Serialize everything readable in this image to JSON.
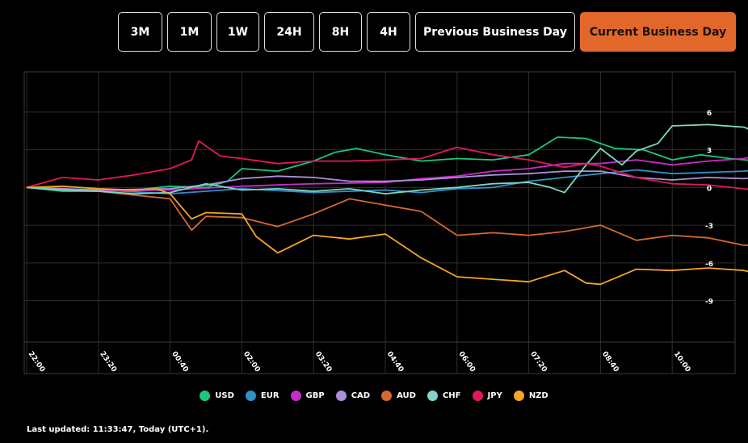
{
  "timeframes": [
    {
      "label": "3M",
      "active": false
    },
    {
      "label": "1M",
      "active": false
    },
    {
      "label": "1W",
      "active": false
    },
    {
      "label": "24H",
      "active": false
    },
    {
      "label": "8H",
      "active": false
    },
    {
      "label": "4H",
      "active": false
    },
    {
      "label": "Previous Business Day",
      "active": false
    },
    {
      "label": "Current Business Day",
      "active": true
    }
  ],
  "footer": {
    "text": "Last updated: 11:33:47, Today (UTC+1)."
  },
  "colors": {
    "accent": "#e2672b",
    "grid": "#2e2e2e"
  },
  "chart_data": {
    "type": "line",
    "x_tick_labels": [
      "22:00",
      "23:20",
      "00:40",
      "02:00",
      "03:20",
      "04:40",
      "06:00",
      "07:20",
      "08:40",
      "10:00"
    ],
    "y_ticks": [
      6,
      3,
      0,
      -3,
      -6,
      -9
    ],
    "ylim": [
      -12.3,
      9.2
    ],
    "xlim": [
      0,
      11.5
    ],
    "grid": true,
    "legend_position": "bottom",
    "series": [
      {
        "name": "USD",
        "color": "#18c97a",
        "x": [
          0,
          0.5,
          1,
          1.5,
          2,
          2.5,
          2.8,
          3,
          3.5,
          4,
          4.3,
          4.6,
          5,
          5.5,
          6,
          6.5,
          7,
          7.4,
          7.8,
          8.2,
          8.6,
          9,
          9.4,
          9.8,
          10.2,
          10.6,
          10.9
        ],
        "y": [
          0,
          -0.3,
          -0.3,
          -0.2,
          0.1,
          0,
          0.5,
          1.5,
          1.3,
          2.1,
          2.8,
          3.1,
          2.6,
          2.1,
          2.3,
          2.2,
          2.6,
          4,
          3.9,
          3.1,
          3,
          2.2,
          2.6,
          2.3,
          2.1,
          2.8,
          2.5
        ]
      },
      {
        "name": "EUR",
        "color": "#2e93c7",
        "x": [
          0,
          1,
          2,
          2.5,
          3,
          4,
          4.5,
          5,
          5.5,
          6,
          6.5,
          7,
          7.5,
          8,
          8.5,
          9,
          9.5,
          10,
          10.5,
          10.9
        ],
        "y": [
          0,
          -0.2,
          -0.5,
          -0.3,
          -0.1,
          -0.4,
          -0.3,
          -0.2,
          -0.4,
          -0.1,
          0,
          0.5,
          0.8,
          1.1,
          1.4,
          1.1,
          1.2,
          1.3,
          1.6,
          1.7
        ]
      },
      {
        "name": "GBP",
        "color": "#c72cc8",
        "x": [
          0,
          1,
          2,
          3,
          3.5,
          4,
          5,
          5.5,
          6,
          6.5,
          7,
          7.5,
          8,
          8.5,
          9,
          9.5,
          10,
          10.5,
          10.9
        ],
        "y": [
          0,
          -0.3,
          -0.2,
          0.1,
          0.2,
          0.3,
          0.4,
          0.7,
          0.9,
          1.3,
          1.5,
          1.9,
          1.9,
          2.2,
          1.8,
          2.1,
          2.3,
          3,
          3.3
        ]
      },
      {
        "name": "CAD",
        "color": "#ad8fdc",
        "x": [
          0,
          1,
          2,
          2.5,
          3,
          3.5,
          4,
          4.5,
          5,
          5.5,
          6,
          6.5,
          7,
          7.5,
          8,
          8.5,
          9,
          9.5,
          10,
          10.5,
          10.9
        ],
        "y": [
          0,
          -0.2,
          -0.1,
          0.2,
          0.7,
          0.9,
          0.8,
          0.5,
          0.5,
          0.6,
          0.8,
          1,
          1.1,
          1.3,
          1.3,
          0.8,
          0.6,
          0.8,
          0.7,
          1,
          1.1
        ]
      },
      {
        "name": "AUD",
        "color": "#d8692d",
        "x": [
          0,
          0.5,
          1,
          1.5,
          2,
          2.3,
          2.5,
          3,
          3.5,
          4,
          4.5,
          5,
          5.5,
          6,
          6.5,
          7,
          7.5,
          8,
          8.5,
          9,
          9.5,
          10,
          10.5,
          10.9
        ],
        "y": [
          0,
          -0.2,
          -0.3,
          -0.6,
          -0.9,
          -3.4,
          -2.3,
          -2.4,
          -3.1,
          -2.1,
          -0.9,
          -1.4,
          -1.9,
          -3.8,
          -3.6,
          -3.8,
          -3.5,
          -3,
          -4.2,
          -3.8,
          -4,
          -4.6,
          -4.5,
          -4.3
        ]
      },
      {
        "name": "CHF",
        "color": "#7fd6c8",
        "x": [
          0,
          0.5,
          1,
          1.5,
          2,
          2.5,
          3,
          3.5,
          4,
          4.5,
          5,
          5.5,
          6,
          6.5,
          7,
          7.3,
          7.5,
          7.8,
          8,
          8.3,
          8.5,
          8.8,
          9,
          9.5,
          10,
          10.3,
          10.6,
          10.9
        ],
        "y": [
          0,
          -0.2,
          -0.3,
          -0.5,
          -0.4,
          0.3,
          -0.2,
          -0.1,
          -0.3,
          -0.1,
          -0.5,
          -0.2,
          0,
          0.3,
          0.4,
          0,
          -0.4,
          1.8,
          3.1,
          1.8,
          2.9,
          3.5,
          4.9,
          5,
          4.8,
          4.1,
          3.4,
          3.2
        ]
      },
      {
        "name": "JPY",
        "color": "#e2185c",
        "x": [
          0,
          0.5,
          1,
          1.5,
          2,
          2.3,
          2.4,
          2.7,
          3,
          3.5,
          4,
          4.5,
          5,
          5.5,
          6,
          6.5,
          7,
          7.5,
          7.8,
          8,
          8.5,
          9,
          9.5,
          10,
          10.5,
          10.9
        ],
        "y": [
          0,
          0.8,
          0.6,
          1,
          1.5,
          2.2,
          3.7,
          2.5,
          2.3,
          1.9,
          2.1,
          2.1,
          2.2,
          2.3,
          3.2,
          2.6,
          2.2,
          1.6,
          1.9,
          1.7,
          0.8,
          0.3,
          0.2,
          -0.1,
          -0.4,
          -0.4
        ]
      },
      {
        "name": "NZD",
        "color": "#f5a623",
        "x": [
          0,
          0.5,
          1,
          1.5,
          1.8,
          2,
          2.3,
          2.5,
          3,
          3.2,
          3.5,
          4,
          4.5,
          5,
          5.5,
          6,
          6.5,
          7,
          7.5,
          7.8,
          8,
          8.5,
          9,
          9.5,
          10,
          10.5,
          10.9
        ],
        "y": [
          0,
          0.1,
          -0.1,
          -0.2,
          -0.1,
          -0.5,
          -2.5,
          -2,
          -2.1,
          -3.9,
          -5.2,
          -3.8,
          -4.1,
          -3.7,
          -5.6,
          -7.1,
          -7.3,
          -7.5,
          -6.6,
          -7.6,
          -7.7,
          -6.5,
          -6.6,
          -6.4,
          -6.6,
          -7.3,
          -7.4
        ]
      }
    ]
  }
}
